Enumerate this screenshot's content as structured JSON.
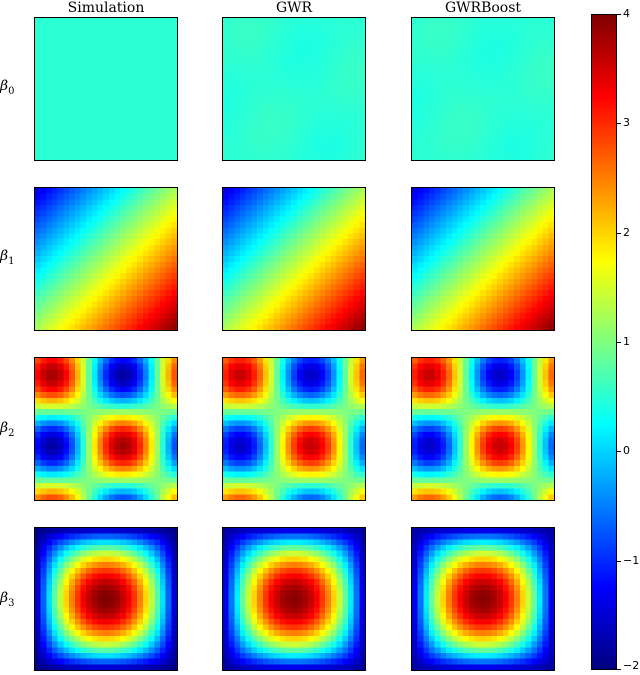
{
  "chart_data": {
    "type": "heatmap",
    "columns": [
      "Simulation",
      "GWR",
      "GWRBoost"
    ],
    "rows": [
      {
        "symbol": "β",
        "sub": "0",
        "description": "constant surface with value ~0.5"
      },
      {
        "symbol": "β",
        "sub": "1",
        "description": "linear gradient from about -1.5 (top-left) to about 4 (bottom-right)"
      },
      {
        "symbol": "β",
        "sub": "2",
        "description": "periodic pattern: peaks ~4 near top-left and center-right; troughs ~-1.5 at top-right and center-left"
      },
      {
        "symbol": "β",
        "sub": "3",
        "description": "central dome: peak ~3.9 at center, about -2 at edges"
      }
    ],
    "colorbar": {
      "colormap": "jet",
      "min": -2,
      "max": 4,
      "ticks": [
        {
          "value": 4,
          "label": "4"
        },
        {
          "value": 3,
          "label": "3"
        },
        {
          "value": 2,
          "label": "2"
        },
        {
          "value": 1,
          "label": "1"
        },
        {
          "value": 0,
          "label": "0"
        },
        {
          "value": -1,
          "label": "−1"
        },
        {
          "value": -2,
          "label": "−2"
        }
      ]
    }
  }
}
